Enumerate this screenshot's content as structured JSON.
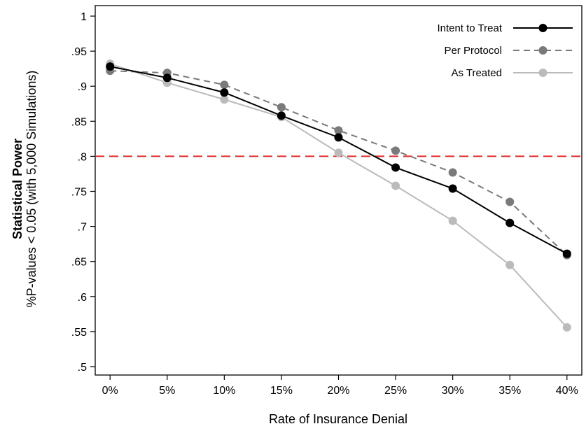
{
  "chart_data": {
    "type": "line",
    "xlabel": "Rate of Insurance Denial",
    "ylabel_bold": "Statistical Power",
    "ylabel": "%P-values < 0.05 (with 5,000 Simulations)",
    "x_ticks": [
      "0%",
      "5%",
      "10%",
      "15%",
      "20%",
      "25%",
      "30%",
      "35%",
      "40%"
    ],
    "x": [
      0,
      5,
      10,
      15,
      20,
      25,
      30,
      35,
      40
    ],
    "xlim": [
      -1.3,
      41.3
    ],
    "y_ticks": [
      {
        "value": 0.5,
        "label": ".5"
      },
      {
        "value": 0.55,
        "label": ".55"
      },
      {
        "value": 0.6,
        "label": ".6"
      },
      {
        "value": 0.65,
        "label": ".65"
      },
      {
        "value": 0.7,
        "label": ".7"
      },
      {
        "value": 0.75,
        "label": ".75"
      },
      {
        "value": 0.8,
        "label": ".8"
      },
      {
        "value": 0.85,
        "label": ".85"
      },
      {
        "value": 0.9,
        "label": ".9"
      },
      {
        "value": 0.95,
        "label": ".95"
      },
      {
        "value": 1.0,
        "label": "1"
      }
    ],
    "ylim": [
      0.488,
      1.015
    ],
    "reference_line": {
      "y": 0.8,
      "color": "#e32a2a",
      "style": "dashed"
    },
    "legend_position": "top-right",
    "grid": false,
    "series": [
      {
        "name": "Intent to Treat",
        "color": "#000000",
        "marker_color": "#000000",
        "line_style": "solid",
        "values": [
          0.928,
          0.912,
          0.891,
          0.858,
          0.827,
          0.784,
          0.754,
          0.705,
          0.661
        ]
      },
      {
        "name": "Per Protocol",
        "color": "#7a7a7a",
        "marker_color": "#7a7a7a",
        "line_style": "dashed",
        "values": [
          0.922,
          0.919,
          0.902,
          0.87,
          0.837,
          0.808,
          0.777,
          0.735,
          0.659
        ]
      },
      {
        "name": "As Treated",
        "color": "#bbbbbb",
        "marker_color": "#bbbbbb",
        "line_style": "solid",
        "values": [
          0.932,
          0.905,
          0.881,
          0.856,
          0.805,
          0.758,
          0.708,
          0.645,
          0.556
        ]
      }
    ]
  }
}
